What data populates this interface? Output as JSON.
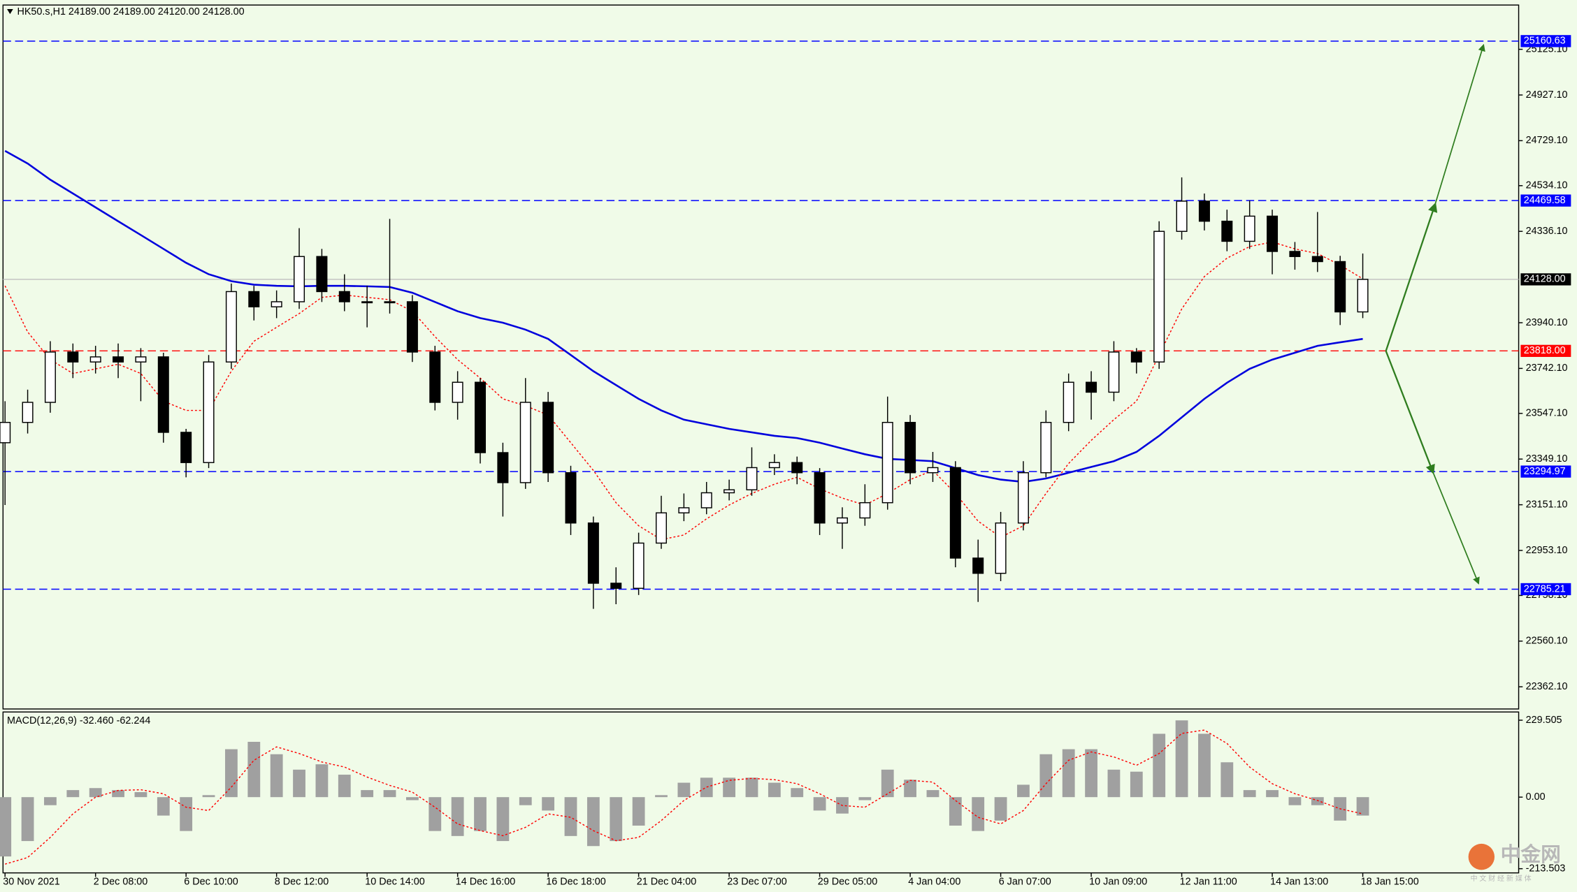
{
  "chart_data": {
    "type": "candlestick",
    "title": "HK50.s,H1  24189.00 24189.00 24120.00 24128.00",
    "categories": [
      "30 Nov 2021",
      null,
      null,
      null,
      "2 Dec 08:00",
      null,
      null,
      null,
      "6 Dec 10:00",
      null,
      null,
      null,
      "8 Dec 12:00",
      null,
      null,
      null,
      "10 Dec 14:00",
      null,
      null,
      null,
      "14 Dec 16:00",
      null,
      null,
      null,
      "16 Dec 18:00",
      null,
      null,
      null,
      "21 Dec 04:00",
      null,
      null,
      null,
      "23 Dec 07:00",
      null,
      null,
      null,
      "29 Dec 05:00",
      null,
      null,
      null,
      "4 Jan 04:00",
      null,
      null,
      null,
      "6 Jan 07:00",
      null,
      null,
      null,
      "10 Jan 09:00",
      null,
      null,
      null,
      "12 Jan 11:00",
      null,
      null,
      null,
      "14 Jan 13:00",
      null,
      null,
      null,
      "18 Jan 15:00"
    ],
    "open": [
      23420,
      23508,
      23595,
      23813,
      23770,
      23792,
      23770,
      23792,
      23465,
      23334,
      23770,
      24075,
      24009,
      24031,
      24227,
      24075,
      24031,
      24031,
      24031,
      23813,
      23595,
      23682,
      23377,
      23247,
      23595,
      23290,
      23072,
      22811,
      22789,
      22985,
      23116,
      23138,
      23203,
      23216,
      23312,
      23334,
      23290,
      23072,
      23094,
      23160,
      23508,
      23290,
      23312,
      22920,
      22854,
      23072,
      23290,
      23508,
      23682,
      23639,
      23813,
      23770,
      24336,
      24467,
      24380,
      24293,
      24402,
      24249,
      24227,
      24205,
      23987
    ],
    "high": [
      23600,
      23650,
      23860,
      23850,
      23840,
      23850,
      23830,
      23810,
      23480,
      23800,
      24110,
      24100,
      24080,
      24350,
      24260,
      24150,
      24100,
      24390,
      24060,
      23840,
      23730,
      23700,
      23420,
      23700,
      23640,
      23320,
      23100,
      22880,
      23030,
      23190,
      23200,
      23250,
      23260,
      23400,
      23370,
      23360,
      23310,
      23140,
      23240,
      23620,
      23540,
      23380,
      23340,
      23000,
      23120,
      23340,
      23560,
      23720,
      23730,
      23860,
      23830,
      24380,
      24570,
      24500,
      24430,
      24470,
      24430,
      24290,
      24420,
      24230,
      24240
    ],
    "low": [
      23150,
      23460,
      23550,
      23700,
      23720,
      23700,
      23600,
      23420,
      23270,
      23310,
      23740,
      23950,
      23960,
      24000,
      24030,
      23990,
      23920,
      23980,
      23770,
      23560,
      23520,
      23330,
      23100,
      23220,
      23250,
      23020,
      22700,
      22720,
      22760,
      22960,
      23080,
      23110,
      23170,
      23190,
      23280,
      23240,
      23020,
      22960,
      23060,
      23130,
      23240,
      23250,
      22880,
      22730,
      22820,
      23040,
      23270,
      23470,
      23520,
      23600,
      23720,
      23740,
      24300,
      24340,
      24250,
      24260,
      24150,
      24170,
      24160,
      23930,
      23960
    ],
    "close": [
      23508,
      23595,
      23813,
      23770,
      23792,
      23770,
      23792,
      23465,
      23334,
      23770,
      24075,
      24009,
      24031,
      24227,
      24075,
      24031,
      24031,
      24031,
      23813,
      23595,
      23682,
      23377,
      23247,
      23595,
      23290,
      23072,
      22811,
      22789,
      22985,
      23116,
      23138,
      23203,
      23216,
      23312,
      23334,
      23290,
      23072,
      23094,
      23160,
      23508,
      23290,
      23312,
      22920,
      22854,
      23072,
      23290,
      23508,
      23682,
      23639,
      23813,
      23770,
      24336,
      24467,
      24380,
      24293,
      24402,
      24249,
      24227,
      24205,
      23987,
      24128
    ],
    "up_color": "#ffffff",
    "down_color": "#000000",
    "overlays": [
      {
        "color": "#0000dd",
        "style": "solid",
        "values": [
          24685,
          24630,
          24560,
          24500,
          24440,
          24380,
          24320,
          24260,
          24200,
          24150,
          24120,
          24105,
          24100,
          24098,
          24100,
          24100,
          24098,
          24095,
          24070,
          24030,
          23990,
          23960,
          23940,
          23910,
          23870,
          23800,
          23730,
          23670,
          23610,
          23560,
          23520,
          23500,
          23480,
          23465,
          23450,
          23440,
          23420,
          23395,
          23370,
          23350,
          23345,
          23340,
          23310,
          23280,
          23260,
          23250,
          23265,
          23290,
          23315,
          23340,
          23380,
          23450,
          23530,
          23610,
          23680,
          23740,
          23780,
          23810,
          23840,
          23855,
          23870
        ]
      },
      {
        "color": "#ff0000",
        "style": "dotted",
        "values": [
          24100,
          23900,
          23780,
          23720,
          23740,
          23760,
          23720,
          23600,
          23560,
          23560,
          23730,
          23860,
          23920,
          23980,
          24050,
          24060,
          24050,
          24040,
          23990,
          23880,
          23780,
          23700,
          23610,
          23580,
          23540,
          23420,
          23300,
          23160,
          23060,
          23000,
          23020,
          23090,
          23150,
          23200,
          23240,
          23270,
          23220,
          23180,
          23150,
          23200,
          23260,
          23300,
          23200,
          23080,
          23010,
          23060,
          23200,
          23330,
          23430,
          23520,
          23600,
          23800,
          24000,
          24140,
          24220,
          24270,
          24290,
          24260,
          24240,
          24190,
          24130
        ]
      }
    ],
    "ylim": [
      22266,
      25317
    ],
    "yticks": [
      {
        "value": 25125.1,
        "label": "25125.10"
      },
      {
        "value": 24927.1,
        "label": "24927.10"
      },
      {
        "value": 24729.1,
        "label": "24729.10"
      },
      {
        "value": 24534.1,
        "label": "24534.10"
      },
      {
        "value": 24336.1,
        "label": "24336.10"
      },
      {
        "value": 23940.1,
        "label": "23940.10"
      },
      {
        "value": 23742.1,
        "label": "23742.10"
      },
      {
        "value": 23547.1,
        "label": "23547.10"
      },
      {
        "value": 23349.1,
        "label": "23349.10"
      },
      {
        "value": 23151.1,
        "label": "23151.10"
      },
      {
        "value": 22953.1,
        "label": "22953.10"
      },
      {
        "value": 22758.1,
        "label": "22758.10"
      },
      {
        "value": 22560.1,
        "label": "22560.10"
      },
      {
        "value": 22362.1,
        "label": "22362.10"
      }
    ],
    "levels": [
      {
        "value": 25160.63,
        "label": "25160.63",
        "color": "#0000ff",
        "style": "dashed"
      },
      {
        "value": 24469.58,
        "label": "24469.58",
        "color": "#0000ff",
        "style": "dashed"
      },
      {
        "value": 24128,
        "label": "24128.00",
        "color": "#000000",
        "line_color": "#c0c0c0",
        "style": "solid"
      },
      {
        "value": 23818,
        "label": "23818.00",
        "color": "#ff0000",
        "style": "dashed"
      },
      {
        "value": 23294.97,
        "label": "23294.97",
        "color": "#0000ff",
        "style": "dashed"
      },
      {
        "value": 22785.21,
        "label": "22785.21",
        "color": "#0000ff",
        "style": "dashed"
      }
    ],
    "macd": {
      "type": "bar",
      "title": "MACD(12,26,9) -32.460 -62.244",
      "values": [
        -177,
        -131,
        -24,
        21,
        27,
        21,
        15,
        -55,
        -101,
        6,
        143,
        165,
        128,
        82,
        98,
        67,
        21,
        21,
        -9,
        -101,
        -116,
        -101,
        -131,
        -24,
        -40,
        -116,
        -146,
        -131,
        -85,
        6,
        43,
        58,
        58,
        58,
        43,
        27,
        -40,
        -49,
        -9,
        82,
        52,
        21,
        -85,
        -101,
        -70,
        37,
        128,
        143,
        143,
        82,
        76,
        189,
        229,
        189,
        104,
        21,
        21,
        -24,
        -24,
        -70,
        -55
      ],
      "signal": [
        -200,
        -180,
        -120,
        -50,
        0,
        20,
        22,
        10,
        -30,
        -40,
        30,
        110,
        150,
        130,
        105,
        90,
        60,
        35,
        15,
        -30,
        -80,
        -100,
        -115,
        -90,
        -50,
        -60,
        -100,
        -130,
        -120,
        -70,
        -10,
        30,
        50,
        56,
        52,
        40,
        10,
        -25,
        -30,
        10,
        50,
        45,
        -10,
        -60,
        -80,
        -40,
        40,
        110,
        135,
        120,
        95,
        130,
        190,
        200,
        160,
        90,
        40,
        10,
        -10,
        -35,
        -50
      ],
      "color": "#a0a0a0",
      "signal_color": "#ff0000",
      "ylim": [
        -226,
        254
      ],
      "yticks": [
        229.505,
        {
          "value": 0,
          "label": "0.00"
        },
        -213.503
      ]
    }
  },
  "watermark": {
    "brand": "中金网",
    "tagline": "中 文 财 经 新 媒 体"
  }
}
